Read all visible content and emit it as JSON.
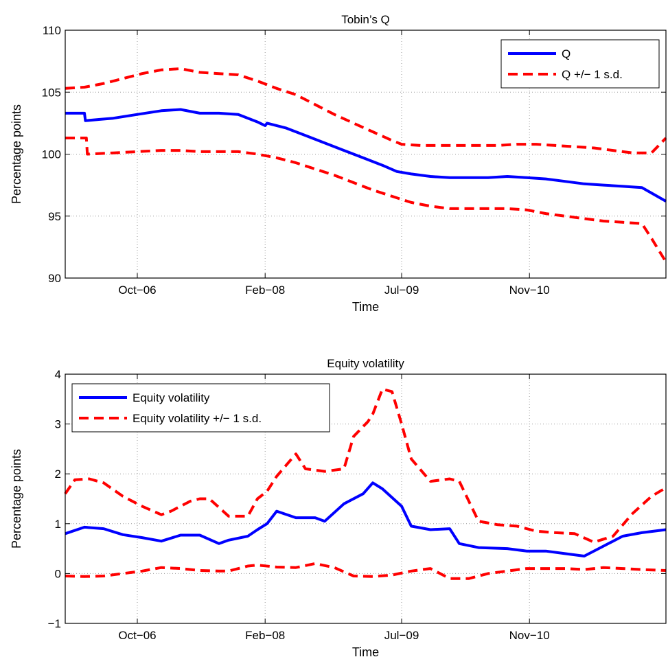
{
  "chart_data": [
    {
      "type": "line",
      "title": "Tobin’s Q",
      "xlabel": "Time",
      "ylabel": "Percentage points",
      "xlim": [
        2006.0,
        2012.25
      ],
      "ylim": [
        90,
        110
      ],
      "yticks": [
        90,
        95,
        100,
        105,
        110
      ],
      "xticks": [
        {
          "value": 2006.75,
          "label": "Oct−06"
        },
        {
          "value": 2008.08,
          "label": "Feb−08"
        },
        {
          "value": 2009.5,
          "label": "Jul−09"
        },
        {
          "value": 2010.83,
          "label": "Nov−10"
        }
      ],
      "grid": true,
      "legend_position": "top-right",
      "series": [
        {
          "name": "Q",
          "color": "#0000ff",
          "style": "solid",
          "x": [
            2006.0,
            2006.2,
            2006.21,
            2006.35,
            2006.5,
            2006.75,
            2007.0,
            2007.2,
            2007.4,
            2007.6,
            2007.8,
            2008.0,
            2008.08,
            2008.1,
            2008.3,
            2008.5,
            2008.7,
            2008.9,
            2009.1,
            2009.3,
            2009.45,
            2009.6,
            2009.8,
            2010.0,
            2010.2,
            2010.4,
            2010.6,
            2010.8,
            2011.0,
            2011.2,
            2011.4,
            2011.6,
            2011.8,
            2012.0,
            2012.25
          ],
          "y": [
            103.3,
            103.3,
            102.7,
            102.8,
            102.9,
            103.2,
            103.5,
            103.6,
            103.3,
            103.3,
            103.2,
            102.6,
            102.3,
            102.5,
            102.1,
            101.5,
            100.9,
            100.3,
            99.7,
            99.1,
            98.6,
            98.4,
            98.2,
            98.1,
            98.1,
            98.1,
            98.2,
            98.1,
            98.0,
            97.8,
            97.6,
            97.5,
            97.4,
            97.3,
            96.2
          ]
        },
        {
          "name": "Q +/− 1 s.d.",
          "color": "#ff0000",
          "style": "dashed",
          "x": [
            2006.0,
            2006.2,
            2006.4,
            2006.6,
            2006.8,
            2007.0,
            2007.2,
            2007.4,
            2007.6,
            2007.8,
            2008.0,
            2008.2,
            2008.4,
            2008.6,
            2008.8,
            2009.0,
            2009.2,
            2009.4,
            2009.5,
            2009.7,
            2009.9,
            2010.1,
            2010.3,
            2010.5,
            2010.7,
            2010.9,
            2011.1,
            2011.3,
            2011.5,
            2011.7,
            2011.9,
            2012.1,
            2012.25
          ],
          "y": [
            105.3,
            105.4,
            105.7,
            106.1,
            106.5,
            106.8,
            106.9,
            106.6,
            106.5,
            106.4,
            105.9,
            105.3,
            104.8,
            104.0,
            103.2,
            102.5,
            101.8,
            101.1,
            100.8,
            100.7,
            100.7,
            100.7,
            100.7,
            100.7,
            100.8,
            100.8,
            100.7,
            100.6,
            100.5,
            100.3,
            100.1,
            100.1,
            101.3
          ]
        },
        {
          "name": "Q +/− 1 s.d.",
          "color": "#ff0000",
          "style": "dashed",
          "x": [
            2006.0,
            2006.22,
            2006.23,
            2006.5,
            2006.75,
            2007.0,
            2007.2,
            2007.4,
            2007.6,
            2007.8,
            2008.0,
            2008.2,
            2008.4,
            2008.6,
            2008.8,
            2009.0,
            2009.2,
            2009.4,
            2009.6,
            2009.8,
            2010.0,
            2010.2,
            2010.4,
            2010.6,
            2010.8,
            2011.0,
            2011.2,
            2011.4,
            2011.6,
            2011.8,
            2012.0,
            2012.1,
            2012.25
          ],
          "y": [
            101.3,
            101.3,
            100.0,
            100.1,
            100.2,
            100.3,
            100.3,
            100.2,
            100.2,
            100.2,
            100.0,
            99.7,
            99.3,
            98.8,
            98.3,
            97.7,
            97.1,
            96.6,
            96.1,
            95.8,
            95.6,
            95.6,
            95.6,
            95.6,
            95.5,
            95.2,
            95.0,
            94.8,
            94.6,
            94.5,
            94.4,
            93.2,
            91.3
          ]
        }
      ]
    },
    {
      "type": "line",
      "title": "Equity volatility",
      "xlabel": "Time",
      "ylabel": "Percentage points",
      "xlim": [
        2006.0,
        2012.25
      ],
      "ylim": [
        -1,
        4
      ],
      "yticks": [
        -1,
        0,
        1,
        2,
        3,
        4
      ],
      "ytick_labels": [
        "−1",
        "0",
        "1",
        "2",
        "3",
        "4"
      ],
      "xticks": [
        {
          "value": 2006.75,
          "label": "Oct−06"
        },
        {
          "value": 2008.08,
          "label": "Feb−08"
        },
        {
          "value": 2009.5,
          "label": "Jul−09"
        },
        {
          "value": 2010.83,
          "label": "Nov−10"
        }
      ],
      "grid": true,
      "legend_position": "top-left",
      "series": [
        {
          "name": "Equity volatility",
          "color": "#0000ff",
          "style": "solid",
          "x": [
            2006.0,
            2006.2,
            2006.4,
            2006.6,
            2006.8,
            2007.0,
            2007.2,
            2007.4,
            2007.6,
            2007.7,
            2007.9,
            2008.0,
            2008.1,
            2008.2,
            2008.4,
            2008.6,
            2008.7,
            2008.9,
            2009.1,
            2009.2,
            2009.3,
            2009.5,
            2009.6,
            2009.8,
            2010.0,
            2010.1,
            2010.3,
            2010.6,
            2010.8,
            2011.0,
            2011.2,
            2011.4,
            2011.6,
            2011.8,
            2012.0,
            2012.25
          ],
          "y": [
            0.8,
            0.93,
            0.9,
            0.78,
            0.72,
            0.65,
            0.77,
            0.77,
            0.6,
            0.67,
            0.75,
            0.88,
            1.0,
            1.25,
            1.12,
            1.12,
            1.05,
            1.4,
            1.6,
            1.82,
            1.7,
            1.35,
            0.95,
            0.88,
            0.9,
            0.6,
            0.52,
            0.5,
            0.45,
            0.45,
            0.4,
            0.35,
            0.55,
            0.75,
            0.82,
            0.88
          ]
        },
        {
          "name": "Equity volatility +/− 1 s.d.",
          "color": "#ff0000",
          "style": "dashed",
          "x": [
            2006.0,
            2006.1,
            2006.25,
            2006.4,
            2006.6,
            2006.8,
            2007.0,
            2007.1,
            2007.3,
            2007.4,
            2007.5,
            2007.7,
            2007.9,
            2008.0,
            2008.1,
            2008.2,
            2008.4,
            2008.5,
            2008.7,
            2008.9,
            2009.0,
            2009.15,
            2009.2,
            2009.3,
            2009.4,
            2009.5,
            2009.6,
            2009.8,
            2010.0,
            2010.1,
            2010.3,
            2010.5,
            2010.7,
            2010.9,
            2011.1,
            2011.3,
            2011.5,
            2011.7,
            2011.9,
            2012.1,
            2012.25
          ],
          "y": [
            1.6,
            1.88,
            1.9,
            1.82,
            1.55,
            1.35,
            1.18,
            1.25,
            1.45,
            1.5,
            1.5,
            1.15,
            1.15,
            1.5,
            1.65,
            1.95,
            2.4,
            2.1,
            2.05,
            2.1,
            2.75,
            3.05,
            3.2,
            3.7,
            3.65,
            3.0,
            2.3,
            1.85,
            1.9,
            1.85,
            1.05,
            0.98,
            0.95,
            0.85,
            0.82,
            0.8,
            0.63,
            0.75,
            1.2,
            1.55,
            1.72
          ]
        },
        {
          "name": "Equity volatility +/− 1 s.d.",
          "color": "#ff0000",
          "style": "dashed",
          "x": [
            2006.0,
            2006.2,
            2006.4,
            2006.6,
            2006.8,
            2007.0,
            2007.2,
            2007.4,
            2007.6,
            2007.7,
            2007.9,
            2008.0,
            2008.2,
            2008.4,
            2008.6,
            2008.8,
            2009.0,
            2009.2,
            2009.4,
            2009.6,
            2009.8,
            2010.0,
            2010.2,
            2010.4,
            2010.6,
            2010.8,
            2011.0,
            2011.2,
            2011.4,
            2011.6,
            2011.8,
            2012.0,
            2012.25
          ],
          "y": [
            -0.05,
            -0.06,
            -0.05,
            0.0,
            0.05,
            0.12,
            0.1,
            0.06,
            0.05,
            0.05,
            0.15,
            0.17,
            0.13,
            0.12,
            0.2,
            0.12,
            -0.05,
            -0.06,
            -0.03,
            0.05,
            0.1,
            -0.1,
            -0.1,
            0.0,
            0.05,
            0.1,
            0.1,
            0.1,
            0.08,
            0.12,
            0.1,
            0.08,
            0.06
          ]
        }
      ]
    }
  ]
}
